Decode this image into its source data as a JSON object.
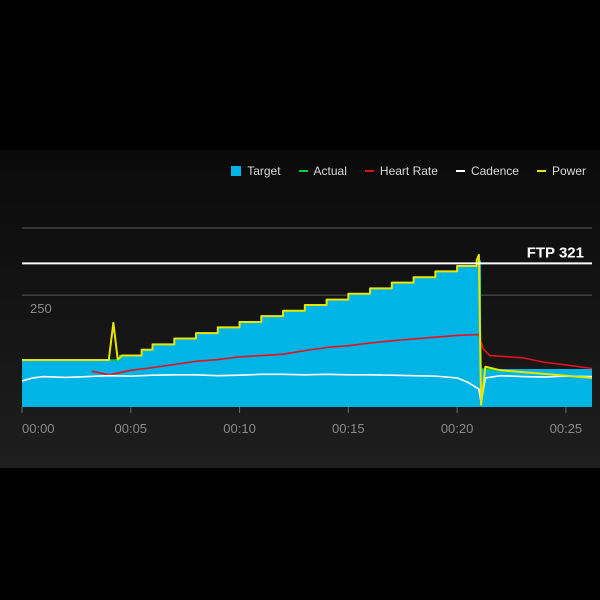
{
  "chart_data": {
    "type": "area",
    "x_unit": "minutes",
    "xlim": [
      0,
      26.2
    ],
    "ylim": [
      0,
      400
    ],
    "x_ticks": [
      {
        "value": 0,
        "label": "00:00"
      },
      {
        "value": 5,
        "label": "00:05"
      },
      {
        "value": 10,
        "label": "00:10"
      },
      {
        "value": 15,
        "label": "00:15"
      },
      {
        "value": 20,
        "label": "00:20"
      },
      {
        "value": 25,
        "label": "00:25"
      }
    ],
    "y_gridlines": [
      250,
      400
    ],
    "y_tick_label": {
      "value": 250,
      "label": "250"
    },
    "ftp": {
      "value": 321,
      "label": "FTP 321"
    },
    "legend": [
      {
        "name": "Target",
        "color": "#00b4e6",
        "style": "box"
      },
      {
        "name": "Actual",
        "color": "#00cc33",
        "style": "line"
      },
      {
        "name": "Heart Rate",
        "color": "#e8101a",
        "style": "line"
      },
      {
        "name": "Cadence",
        "color": "#ffffff",
        "style": "line"
      },
      {
        "name": "Power",
        "color": "#e8e600",
        "style": "line"
      }
    ],
    "series": [
      {
        "name": "Target",
        "color": "#00b4e6",
        "x": [
          0,
          3.4,
          4.5,
          5.5,
          6.0,
          7.0,
          8.0,
          9.0,
          10.0,
          11.0,
          12.0,
          13.0,
          14.0,
          15.0,
          16.0,
          17.0,
          18.0,
          19.0,
          20.0,
          21.0,
          21.1,
          26.2
        ],
        "values": [
          105,
          105,
          115,
          128,
          140,
          153,
          165,
          178,
          190,
          203,
          215,
          228,
          240,
          253,
          265,
          278,
          290,
          303,
          315,
          328,
          85,
          65
        ]
      },
      {
        "name": "Actual",
        "color": "#00cc33",
        "x": [
          0,
          3.4,
          4.5,
          5.5,
          6.0,
          7.0,
          8.0,
          9.0,
          10.0,
          11.0,
          12.0,
          13.0,
          14.0,
          15.0,
          16.0,
          17.0,
          18.0,
          19.0,
          20.0,
          20.9,
          21.0,
          21.1,
          26.2
        ],
        "values": [
          105,
          105,
          115,
          128,
          140,
          153,
          165,
          178,
          190,
          203,
          215,
          228,
          240,
          253,
          265,
          278,
          290,
          303,
          315,
          328,
          340,
          85,
          65
        ]
      },
      {
        "name": "Heart Rate",
        "color": "#e8101a",
        "x": [
          3.2,
          4.0,
          5.0,
          6.0,
          7.0,
          8.0,
          9.0,
          10.0,
          11.0,
          12.0,
          13.0,
          14.0,
          15.0,
          16.0,
          17.0,
          18.0,
          19.0,
          20.0,
          21.0,
          21.2,
          21.5,
          23.0,
          24.0,
          25.0,
          26.2
        ],
        "values": [
          80,
          72,
          82,
          88,
          95,
          102,
          106,
          112,
          115,
          118,
          126,
          133,
          137,
          143,
          148,
          152,
          156,
          160,
          162,
          130,
          115,
          110,
          100,
          94,
          86
        ]
      },
      {
        "name": "Cadence",
        "color": "#ffffff",
        "x": [
          0,
          0.5,
          1,
          2,
          3,
          4,
          5,
          6,
          7,
          8,
          9,
          10,
          11,
          12,
          13,
          14,
          15,
          16,
          17,
          18,
          19,
          20,
          20.5,
          21.0,
          21.1,
          21.3,
          22,
          23,
          24,
          25,
          26.2
        ],
        "values": [
          58,
          65,
          68,
          66,
          68,
          70,
          69,
          71,
          72,
          72,
          70,
          71,
          73,
          73,
          72,
          73,
          72,
          72,
          71,
          70,
          69,
          65,
          55,
          40,
          10,
          65,
          70,
          68,
          67,
          69,
          68
        ]
      },
      {
        "name": "Power",
        "color": "#e8e600",
        "x": [
          0,
          3.4,
          4.0,
          4.2,
          4.4,
          4.6,
          5.5,
          6.0,
          7.0,
          8.0,
          9.0,
          10.0,
          11.0,
          12.0,
          13.0,
          14.0,
          15.0,
          16.0,
          17.0,
          18.0,
          19.0,
          20.0,
          20.9,
          21.0,
          21.1,
          21.3,
          22,
          26.2
        ],
        "values": [
          105,
          105,
          110,
          188,
          106,
          115,
          128,
          140,
          153,
          165,
          178,
          190,
          203,
          215,
          228,
          240,
          253,
          265,
          278,
          290,
          303,
          315,
          328,
          340,
          5,
          90,
          82,
          65
        ]
      }
    ]
  }
}
